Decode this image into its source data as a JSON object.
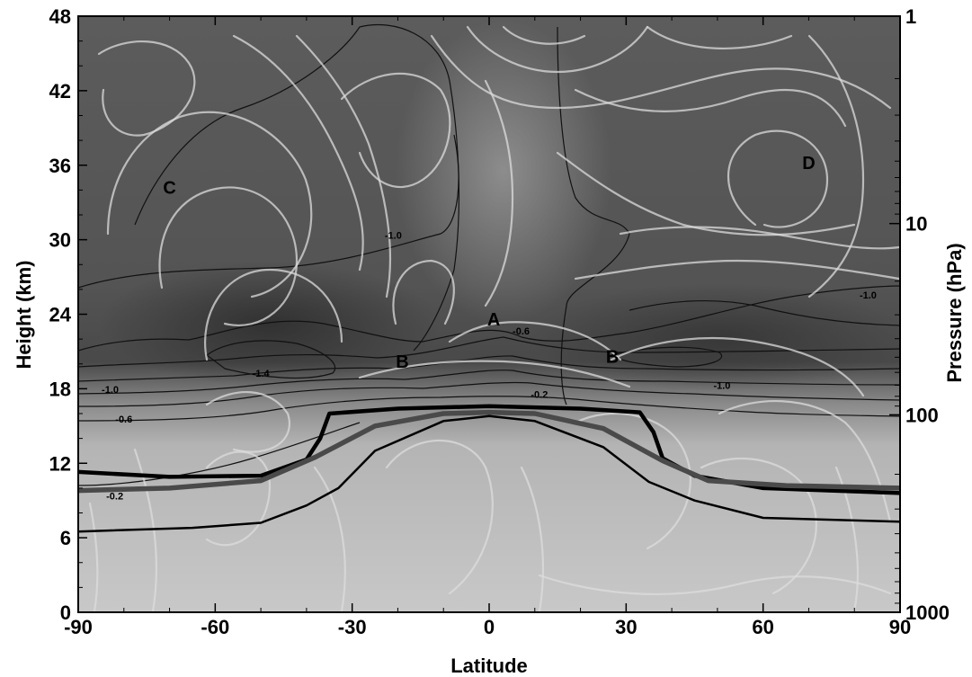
{
  "chart_data": {
    "type": "contour",
    "xlabel": "Latitude",
    "ylabel_left": "Height (km)",
    "ylabel_right": "Pressure (hPa)",
    "xlim": [
      -90,
      90
    ],
    "ylim": [
      0,
      48
    ],
    "x_ticks": [
      -90,
      -60,
      -30,
      0,
      30,
      60,
      90
    ],
    "x_tick_labels": [
      "-90",
      "-60",
      "-30",
      "0",
      "30",
      "60",
      "90"
    ],
    "y_ticks": [
      0,
      6,
      12,
      18,
      24,
      30,
      36,
      42,
      48
    ],
    "y_tick_labels": [
      "0",
      "6",
      "12",
      "18",
      "24",
      "30",
      "36",
      "42",
      "48"
    ],
    "pressure_ticks": [
      {
        "label": "1",
        "height_km": 48
      },
      {
        "label": "10",
        "height_km": 31.3
      },
      {
        "label": "100",
        "height_km": 15.9
      },
      {
        "label": "1000",
        "height_km": 0
      }
    ],
    "pressure_scale": "log",
    "region_labels": [
      {
        "text": "A",
        "lat": 1,
        "height": 23.6
      },
      {
        "text": "B",
        "lat": -19,
        "height": 20.2
      },
      {
        "text": "B",
        "lat": 27,
        "height": 20.6
      },
      {
        "text": "C",
        "lat": -70,
        "height": 34.2
      },
      {
        "text": "D",
        "lat": 70,
        "height": 36.2
      }
    ],
    "contour_labels": [
      {
        "text": "-1.0",
        "lat": -21,
        "height": 30.3
      },
      {
        "text": "-1.4",
        "lat": -50,
        "height": 19.2
      },
      {
        "text": "-1.0",
        "lat": -83,
        "height": 17.9
      },
      {
        "text": "-0.6",
        "lat": -80,
        "height": 15.5
      },
      {
        "text": "-0.6",
        "lat": 7,
        "height": 22.6
      },
      {
        "text": "-0.2",
        "lat": 11,
        "height": 17.5
      },
      {
        "text": "-1.0",
        "lat": 51,
        "height": 18.2
      },
      {
        "text": "-1.0",
        "lat": 83,
        "height": 25.5
      },
      {
        "text": "-0.2",
        "lat": -82,
        "height": 9.3
      }
    ],
    "tropopause_lines": [
      {
        "name": "thick black",
        "color": "#000000",
        "points": [
          [
            -90,
            11.3
          ],
          [
            -70,
            10.9
          ],
          [
            -50,
            11.0
          ],
          [
            -40,
            12.3
          ],
          [
            -37,
            14.0
          ],
          [
            -35,
            16.0
          ],
          [
            -20,
            16.4
          ],
          [
            0,
            16.6
          ],
          [
            20,
            16.4
          ],
          [
            33,
            16.1
          ],
          [
            36,
            14.5
          ],
          [
            38,
            12.4
          ],
          [
            45,
            11.0
          ],
          [
            60,
            10.0
          ],
          [
            90,
            9.6
          ]
        ]
      },
      {
        "name": "thick gray",
        "color": "#4a4a4a",
        "points": [
          [
            -90,
            9.8
          ],
          [
            -70,
            10.0
          ],
          [
            -50,
            10.6
          ],
          [
            -38,
            12.5
          ],
          [
            -25,
            15.0
          ],
          [
            -10,
            16.0
          ],
          [
            0,
            16.1
          ],
          [
            10,
            16.0
          ],
          [
            25,
            14.8
          ],
          [
            38,
            12.2
          ],
          [
            48,
            10.6
          ],
          [
            65,
            10.2
          ],
          [
            90,
            10.0
          ]
        ]
      },
      {
        "name": "thin black",
        "color": "#000000",
        "points": [
          [
            -90,
            6.5
          ],
          [
            -65,
            6.8
          ],
          [
            -50,
            7.2
          ],
          [
            -40,
            8.6
          ],
          [
            -33,
            10.0
          ],
          [
            -25,
            13.0
          ],
          [
            -10,
            15.4
          ],
          [
            0,
            15.8
          ],
          [
            10,
            15.4
          ],
          [
            25,
            13.3
          ],
          [
            35,
            10.5
          ],
          [
            45,
            9.0
          ],
          [
            60,
            7.6
          ],
          [
            90,
            7.3
          ]
        ]
      }
    ]
  }
}
